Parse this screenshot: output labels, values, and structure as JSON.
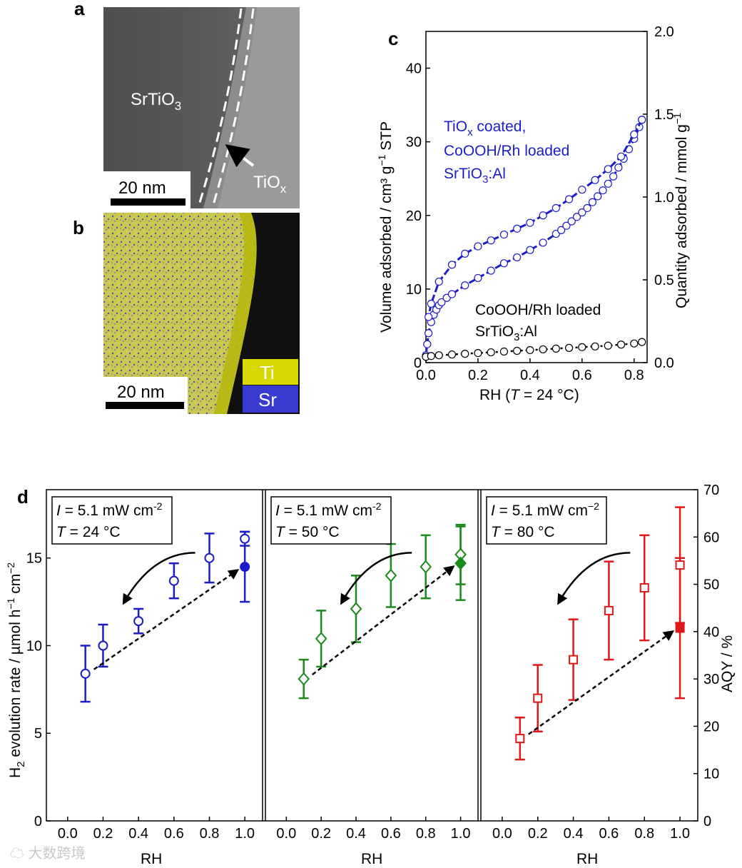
{
  "panel_labels": {
    "a": "a",
    "b": "b",
    "c": "c",
    "d": "d"
  },
  "panel_a": {
    "material_label": "SrTiO",
    "material_sub": "3",
    "coating_label": "TiO",
    "coating_sub": "x",
    "scale_bar": "20 nm"
  },
  "panel_b": {
    "scale_bar": "20 nm",
    "legend": [
      "Ti",
      "Sr"
    ],
    "colors": {
      "Ti": "#d8d800",
      "Sr": "#3a3ad0"
    }
  },
  "chart_data": [
    {
      "type": "scatter",
      "panel": "c",
      "xlabel": "RH (T = 24 °C)",
      "ylabel": "Volume adsorbed / cm³ g⁻¹ STP",
      "y2label": "Quantity adsorbed / mmol g⁻¹",
      "xlim": [
        0.0,
        0.85
      ],
      "ylim": [
        0,
        45
      ],
      "y2lim": [
        0.0,
        2.0
      ],
      "xticks": [
        "0.0",
        "0.2",
        "0.4",
        "0.6",
        "0.8"
      ],
      "yticks": [
        "0",
        "10",
        "20",
        "30",
        "40"
      ],
      "y2ticks": [
        "0.0",
        "0.5",
        "1.0",
        "1.5",
        "2.0"
      ],
      "annotations": {
        "coated_line1": "TiO",
        "coated_sub": "x",
        "coated_line1b": " coated,",
        "coated_line2": "CoOOH/Rh loaded",
        "coated_line3": "SrTiO",
        "coated_line3_sub": "3",
        "coated_line3b": ":Al",
        "uncoated_line1": "CoOOH/Rh loaded",
        "uncoated_line2": "SrTiO",
        "uncoated_line2_sub": "3",
        "uncoated_line2b": ":Al"
      },
      "series": [
        {
          "name": "TiOx coated adsorption",
          "color": "#1c1cc8",
          "x": [
            0.0,
            0.005,
            0.01,
            0.02,
            0.03,
            0.04,
            0.05,
            0.06,
            0.08,
            0.1,
            0.15,
            0.2,
            0.25,
            0.3,
            0.35,
            0.4,
            0.45,
            0.5,
            0.52,
            0.54,
            0.56,
            0.58,
            0.6,
            0.62,
            0.64,
            0.66,
            0.68,
            0.7,
            0.72,
            0.74,
            0.76,
            0.78,
            0.8,
            0.82,
            0.83
          ],
          "y": [
            1.0,
            2.5,
            4.0,
            5.5,
            6.5,
            7.2,
            7.8,
            8.2,
            8.8,
            9.3,
            10.5,
            11.5,
            12.5,
            13.5,
            14.3,
            15.3,
            16.3,
            17.5,
            18.0,
            18.6,
            19.2,
            19.8,
            20.4,
            21.0,
            21.8,
            22.6,
            23.4,
            24.3,
            25.3,
            26.5,
            27.7,
            29.0,
            30.4,
            32.0,
            33.0
          ]
        },
        {
          "name": "TiOx coated desorption",
          "color": "#1c1cc8",
          "x": [
            0.83,
            0.8,
            0.75,
            0.7,
            0.65,
            0.6,
            0.55,
            0.5,
            0.45,
            0.4,
            0.35,
            0.3,
            0.25,
            0.2,
            0.15,
            0.1,
            0.05,
            0.02,
            0.01
          ],
          "y": [
            33.0,
            31.0,
            28.0,
            26.3,
            24.8,
            23.5,
            22.2,
            21.0,
            20.0,
            19.0,
            18.2,
            17.4,
            16.6,
            15.8,
            14.8,
            13.3,
            11.0,
            8.0,
            6.2
          ]
        },
        {
          "name": "Uncoated",
          "color": "#000000",
          "x": [
            0.0,
            0.02,
            0.05,
            0.1,
            0.15,
            0.2,
            0.25,
            0.3,
            0.35,
            0.4,
            0.45,
            0.5,
            0.55,
            0.6,
            0.65,
            0.7,
            0.75,
            0.8,
            0.83
          ],
          "y": [
            0.8,
            0.9,
            1.0,
            1.1,
            1.2,
            1.3,
            1.4,
            1.5,
            1.6,
            1.7,
            1.8,
            1.9,
            2.0,
            2.1,
            2.2,
            2.3,
            2.45,
            2.6,
            2.8
          ]
        }
      ]
    },
    {
      "type": "scatter",
      "panel": "d",
      "ylabel_main": "H",
      "ylabel_sub": "2",
      "ylabel_rest": " evolution rate / µmol h",
      "ylabel_sup1": "−1",
      "ylabel_cm": " cm",
      "ylabel_sup2": "−2",
      "y2label": "AQY / %",
      "xlabel": "RH",
      "xticks": [
        "0.0",
        "0.2",
        "0.4",
        "0.6",
        "0.8",
        "1.0"
      ],
      "yticks": [
        "0",
        "5",
        "10",
        "15"
      ],
      "y2ticks": [
        "0",
        "10",
        "20",
        "30",
        "40",
        "50",
        "60",
        "70"
      ],
      "ylim": [
        0,
        18.9
      ],
      "y2lim": [
        0,
        70
      ],
      "xlim": [
        -0.12,
        1.1
      ],
      "subplots": [
        {
          "I_label": "I",
          "I_text": " = 5.1 mW cm",
          "I_sup": "-2",
          "T_label": "T",
          "T_text": " = 24 °C",
          "color": "#1c1cc8",
          "marker": "circle",
          "x": [
            0.1,
            0.2,
            0.4,
            0.6,
            0.8,
            1.0
          ],
          "y": [
            8.4,
            10.0,
            11.4,
            13.7,
            15.0,
            16.1
          ],
          "err": [
            1.6,
            1.2,
            0.7,
            1.0,
            1.4,
            0.4
          ],
          "filled": {
            "x": 1.0,
            "y": 14.5,
            "err": 2.0
          }
        },
        {
          "I_label": "I",
          "I_text": " = 5.1 mW cm",
          "I_sup": "-2",
          "T_label": "T",
          "T_text": " = 50 °C",
          "color": "#1a8a1a",
          "marker": "diamond",
          "x": [
            0.1,
            0.2,
            0.4,
            0.6,
            0.8,
            1.0
          ],
          "y": [
            8.1,
            10.4,
            12.1,
            14.0,
            14.5,
            15.2
          ],
          "err": [
            1.1,
            1.6,
            1.9,
            1.8,
            1.8,
            1.7
          ],
          "filled": {
            "x": 1.0,
            "y": 14.7,
            "err": 2.1
          }
        },
        {
          "I_label": "I",
          "I_text": " = 5.1 mW cm",
          "I_sup": "−2",
          "T_label": "T",
          "T_text": " = 80 °C",
          "color": "#e01818",
          "marker": "square",
          "x": [
            0.1,
            0.2,
            0.4,
            0.6,
            0.8,
            1.0
          ],
          "y": [
            4.7,
            7.0,
            9.2,
            12.0,
            13.3,
            14.6
          ],
          "err": [
            1.2,
            1.9,
            2.3,
            2.8,
            3.0,
            3.3
          ],
          "filled": {
            "x": 1.0,
            "y": 11.0,
            "err": 4.0
          }
        }
      ]
    }
  ]
}
